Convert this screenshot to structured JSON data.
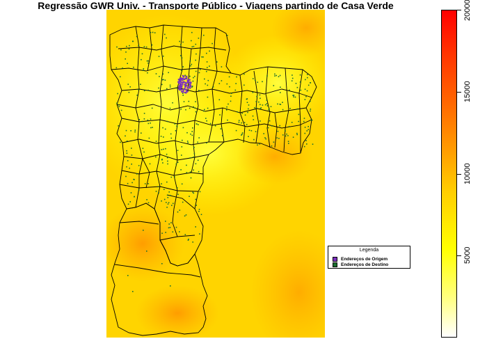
{
  "title": "Regressão GWR Univ. - Transporte Público - Viagens partindo de Casa Verde",
  "legend": {
    "title": "Legenda",
    "items": [
      {
        "label": "Endereços de Origem",
        "color": "#7b2fbe"
      },
      {
        "label": "Endereços de Destino",
        "color": "#1a6e2e"
      }
    ]
  },
  "colorbar": {
    "min": 0,
    "max": 20000,
    "ticks": [
      "5000",
      "10000",
      "15000",
      "20000"
    ],
    "colors": [
      "#ffffff",
      "#ffff00",
      "#ff9900",
      "#ff0000"
    ]
  },
  "map": {
    "background_colors": [
      "#ffff00",
      "#ffd000",
      "#ffa500"
    ],
    "boundary_color": "#000000"
  }
}
